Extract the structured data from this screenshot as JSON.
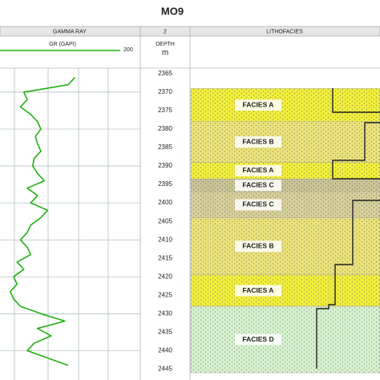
{
  "chart_data": {
    "type": "well-log",
    "title": "MO9",
    "tracks": {
      "gamma_ray": "GAMMA RAY",
      "depth_index": "2",
      "lithofacies": "LITHOFACIES"
    },
    "depth_label": "DEPTH",
    "depth_unit": "m",
    "curve_label": "GR (GAPI)",
    "xlim": [
      0,
      200
    ],
    "ylim": [
      2363.5,
      2446
    ],
    "yticks": [
      2365,
      2370,
      2375,
      2380,
      2385,
      2390,
      2395,
      2400,
      2405,
      2410,
      2415,
      2420,
      2425,
      2430,
      2435,
      2440,
      2445
    ],
    "grid": true,
    "series": [
      {
        "name": "GR (GAPI)",
        "color": "#22b014",
        "x": [
          110,
          100,
          35,
          40,
          30,
          45,
          55,
          60,
          52,
          55,
          60,
          50,
          48,
          55,
          65,
          40,
          55,
          45,
          70,
          60,
          45,
          40,
          30,
          40,
          45,
          25,
          35,
          20,
          25,
          15,
          20,
          30,
          60,
          95,
          55,
          75,
          50,
          40,
          70,
          100
        ],
        "y": [
          2366,
          2368,
          2370,
          2372,
          2374,
          2376,
          2378,
          2380,
          2382,
          2384,
          2386,
          2388,
          2390,
          2392,
          2394,
          2396,
          2398,
          2400,
          2402,
          2404,
          2406,
          2408,
          2410,
          2412,
          2414,
          2416,
          2418,
          2420,
          2422,
          2424,
          2426,
          2428,
          2430,
          2432,
          2434,
          2436,
          2438,
          2440,
          2442,
          2444
        ]
      }
    ],
    "facies": [
      {
        "label": "FACIES A",
        "top": 2369,
        "bottom": 2378,
        "color": "#f2ef3c"
      },
      {
        "label": "FACIES B",
        "top": 2378,
        "bottom": 2389,
        "color": "#ece37a"
      },
      {
        "label": "FACIES A",
        "top": 2389,
        "bottom": 2393.5,
        "color": "#f2ef3c"
      },
      {
        "label": "FACIES C",
        "top": 2393.5,
        "bottom": 2397,
        "color": "#c9c595"
      },
      {
        "label": "FACIES C",
        "top": 2397,
        "bottom": 2404,
        "color": "#d8d09a"
      },
      {
        "label": "FACIES B",
        "top": 2404,
        "bottom": 2419.5,
        "color": "#ece37a"
      },
      {
        "label": "FACIES A",
        "top": 2419.5,
        "bottom": 2428,
        "color": "#f2ef3c"
      },
      {
        "label": "FACIES D",
        "top": 2428,
        "bottom": 2446,
        "color": "#d6f2cf"
      }
    ]
  }
}
